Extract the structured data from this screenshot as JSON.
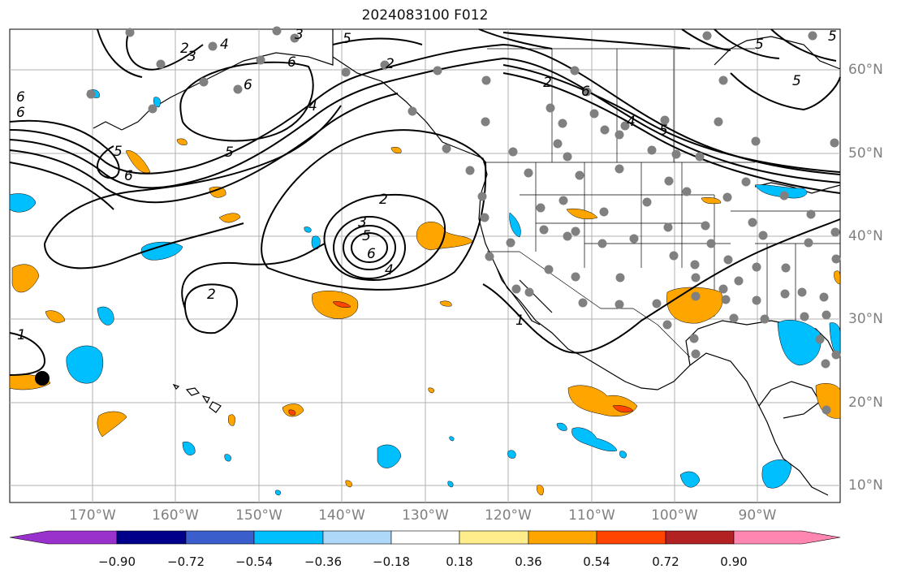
{
  "title": "2024083100 F012",
  "lon_labels": [
    "170°W",
    "160°W",
    "150°W",
    "140°W",
    "130°W",
    "120°W",
    "110°W",
    "100°W",
    "90°W"
  ],
  "lat_labels": [
    "60°N",
    "50°N",
    "40°N",
    "30°N",
    "20°N",
    "10°N"
  ],
  "contour_labels": [
    "2",
    "3",
    "4",
    "5",
    "6",
    "5",
    "6",
    "2",
    "3",
    "4",
    "5",
    "6",
    "5",
    "2",
    "3",
    "2",
    "4",
    "5",
    "6",
    "2",
    "1",
    "1",
    "6",
    "6",
    "5",
    "5",
    "4",
    "5",
    "6"
  ],
  "colorbar": {
    "ticks": [
      "−0.90",
      "−0.72",
      "−0.54",
      "−0.36",
      "−0.18",
      "0.18",
      "0.36",
      "0.54",
      "0.72",
      "0.90"
    ],
    "colors": [
      "#9932cc",
      "#00008b",
      "#3a5fcd",
      "#00bfff",
      "#add8f7",
      "#ffffff",
      "#ffec8b",
      "#ffa500",
      "#ff4500",
      "#b22222",
      "#ff86b0"
    ]
  },
  "colors": {
    "land_outline": "#000000",
    "grid": "#b0b0b0",
    "station_dot": "#808080"
  }
}
